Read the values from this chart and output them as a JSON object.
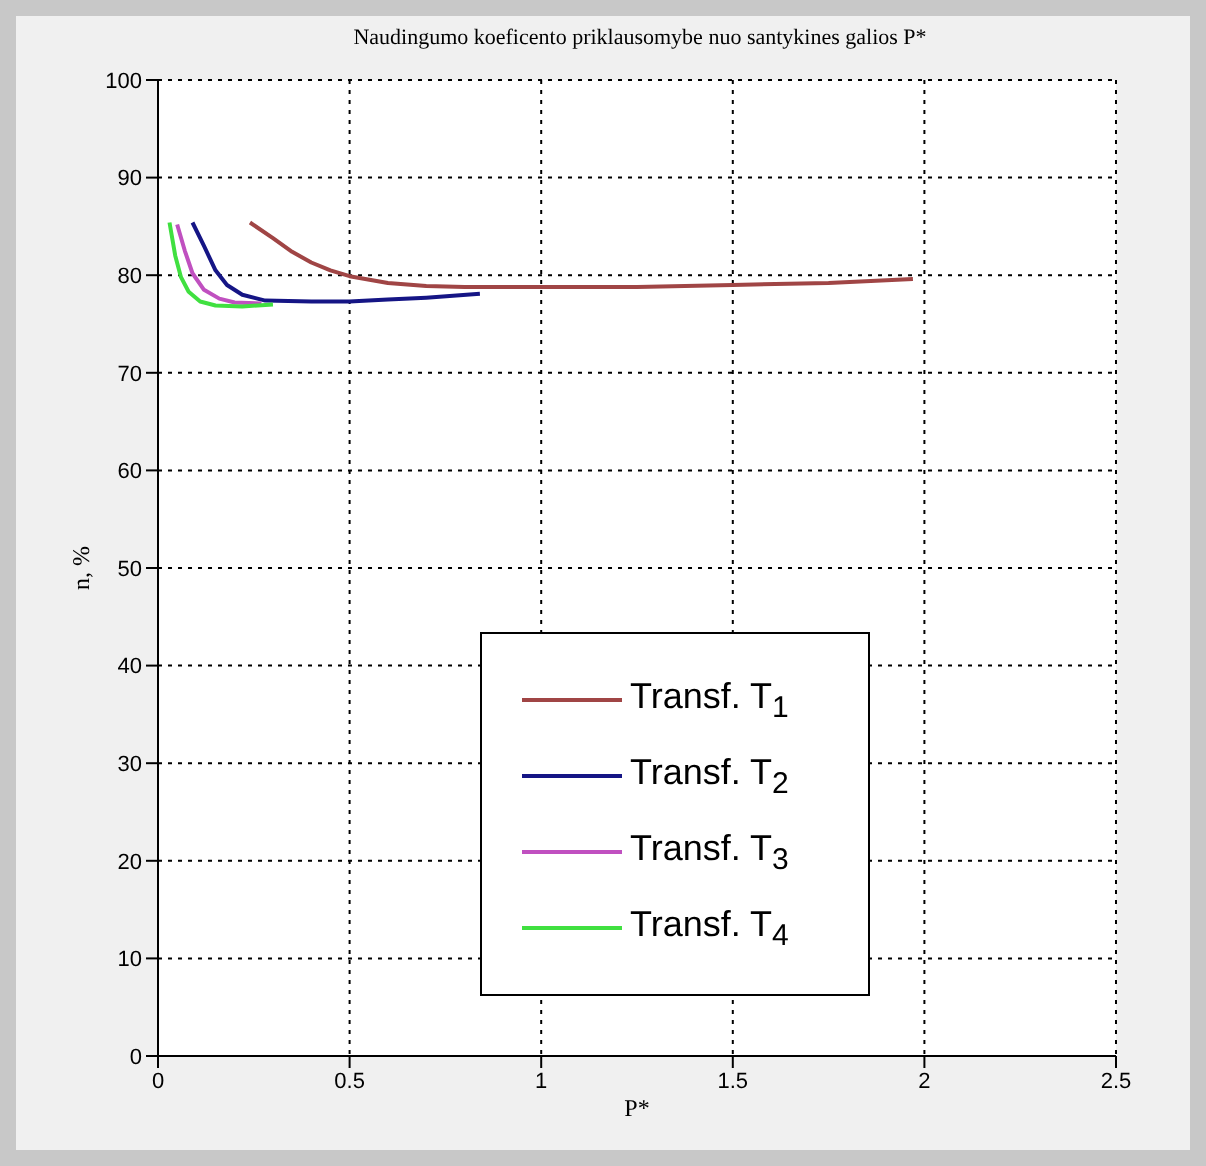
{
  "chart_data": {
    "type": "line",
    "title": "Naudingumo koeficento priklausomybe nuo santykines galios P*",
    "xlabel": "P*",
    "ylabel": "n, %",
    "xlim": [
      0,
      2.5
    ],
    "xticks": [
      0,
      0.5,
      1,
      1.5,
      2,
      2.5
    ],
    "ylim": [
      0,
      100
    ],
    "yticks": [
      0,
      10,
      20,
      30,
      40,
      50,
      60,
      70,
      80,
      90,
      100
    ],
    "grid": true,
    "legend": "bottom",
    "series": [
      {
        "name": "Transf. T$_{1}$",
        "color": "#a04545",
        "x": [
          0.24,
          0.3,
          0.35,
          0.4,
          0.45,
          0.5,
          0.6,
          0.7,
          0.8,
          1,
          1.25,
          1.5,
          1.75,
          1.97
        ],
        "values": [
          85.4,
          83.8,
          82.4,
          81.3,
          80.5,
          79.9,
          79.2,
          78.9,
          78.8,
          78.8,
          78.8,
          79.0,
          79.2,
          79.6
        ]
      },
      {
        "name": "Transf. T$_{2}$",
        "color": "#151585",
        "x": [
          0.09,
          0.12,
          0.15,
          0.18,
          0.22,
          0.28,
          0.4,
          0.5,
          0.6,
          0.7,
          0.84
        ],
        "values": [
          85.4,
          83,
          80.5,
          79,
          78,
          77.4,
          77.3,
          77.3,
          77.5,
          77.7,
          78.1
        ]
      },
      {
        "name": "Transf. T$_{3}$",
        "color": "#c050c0",
        "x": [
          0.05,
          0.07,
          0.09,
          0.12,
          0.16,
          0.2,
          0.27
        ],
        "values": [
          85.2,
          82.5,
          80.2,
          78.5,
          77.6,
          77.2,
          77.1
        ]
      },
      {
        "name": "Transf. T$_{4}$",
        "color": "#40e040",
        "x": [
          0.03,
          0.045,
          0.06,
          0.08,
          0.11,
          0.15,
          0.22,
          0.3
        ],
        "values": [
          85.4,
          82,
          79.8,
          78.3,
          77.3,
          76.9,
          76.8,
          77.0
        ]
      }
    ]
  }
}
